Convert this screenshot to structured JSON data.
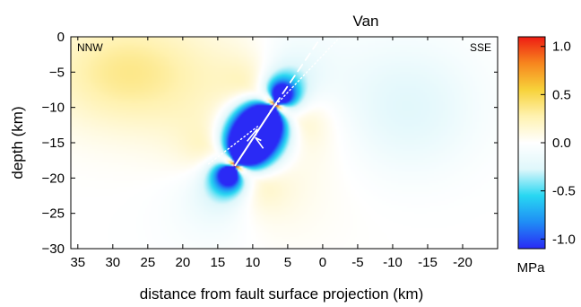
{
  "chart_data": {
    "type": "heatmap",
    "title": "Van",
    "xlabel": "distance from fault surface projection (km)",
    "ylabel": "depth (km)",
    "x_ticks": [
      35,
      30,
      25,
      20,
      15,
      10,
      5,
      0,
      -5,
      -10,
      -15,
      -20
    ],
    "x_tick_labels": [
      "35",
      "30",
      "25",
      "20",
      "15",
      "10",
      "5",
      "0",
      "-5",
      "-10",
      "-15",
      "-20"
    ],
    "xlim": [
      36,
      -25
    ],
    "x_axis_reversed": true,
    "y_ticks": [
      0,
      -5,
      -10,
      -15,
      -20,
      -25,
      -30
    ],
    "y_tick_labels": [
      "0",
      "−5",
      "−10",
      "−15",
      "−20",
      "−25",
      "−30"
    ],
    "ylim": [
      -30,
      0
    ],
    "corner_labels": {
      "left": "NNW",
      "right": "SSE"
    },
    "colorbar": {
      "unit": "MPa",
      "range": [
        -1.1,
        1.1
      ],
      "ticks": [
        1.0,
        0.5,
        0.0,
        -0.5,
        -1.0
      ],
      "tick_labels": [
        "1.0",
        "0.5",
        "0.0",
        "-0.5",
        "-1.0"
      ],
      "colormap": [
        "#2a2af5",
        "#1f8df5",
        "#28d7f2",
        "#dff7fb",
        "#ffffff",
        "#fff2b0",
        "#f7d23a",
        "#f7861e",
        "#ee1c13"
      ]
    },
    "fault": {
      "main_segment": [
        [
          12.5,
          -18.2
        ],
        [
          6.8,
          -9.6
        ]
      ],
      "extension_dashed": [
        [
          6.8,
          -9.6
        ],
        [
          0.2,
          0.0
        ]
      ],
      "dotted_line_left": [
        [
          16.3,
          -18.0
        ],
        [
          9.3,
          -12.7
        ]
      ],
      "dotted_line_right": [
        [
          7.5,
          -10.5
        ],
        [
          -2.5,
          0.0
        ]
      ],
      "slip_arrow_upper": [
        [
          10.8,
          -14.8
        ],
        [
          9.4,
          -13.1
        ]
      ],
      "slip_arrow_lower": [
        [
          8.5,
          -15.8
        ],
        [
          9.6,
          -14.3
        ]
      ]
    },
    "grid": false,
    "legend": "colorbar-right"
  },
  "colors": {
    "fault_line": "#ffffff",
    "axis": "#000000"
  }
}
